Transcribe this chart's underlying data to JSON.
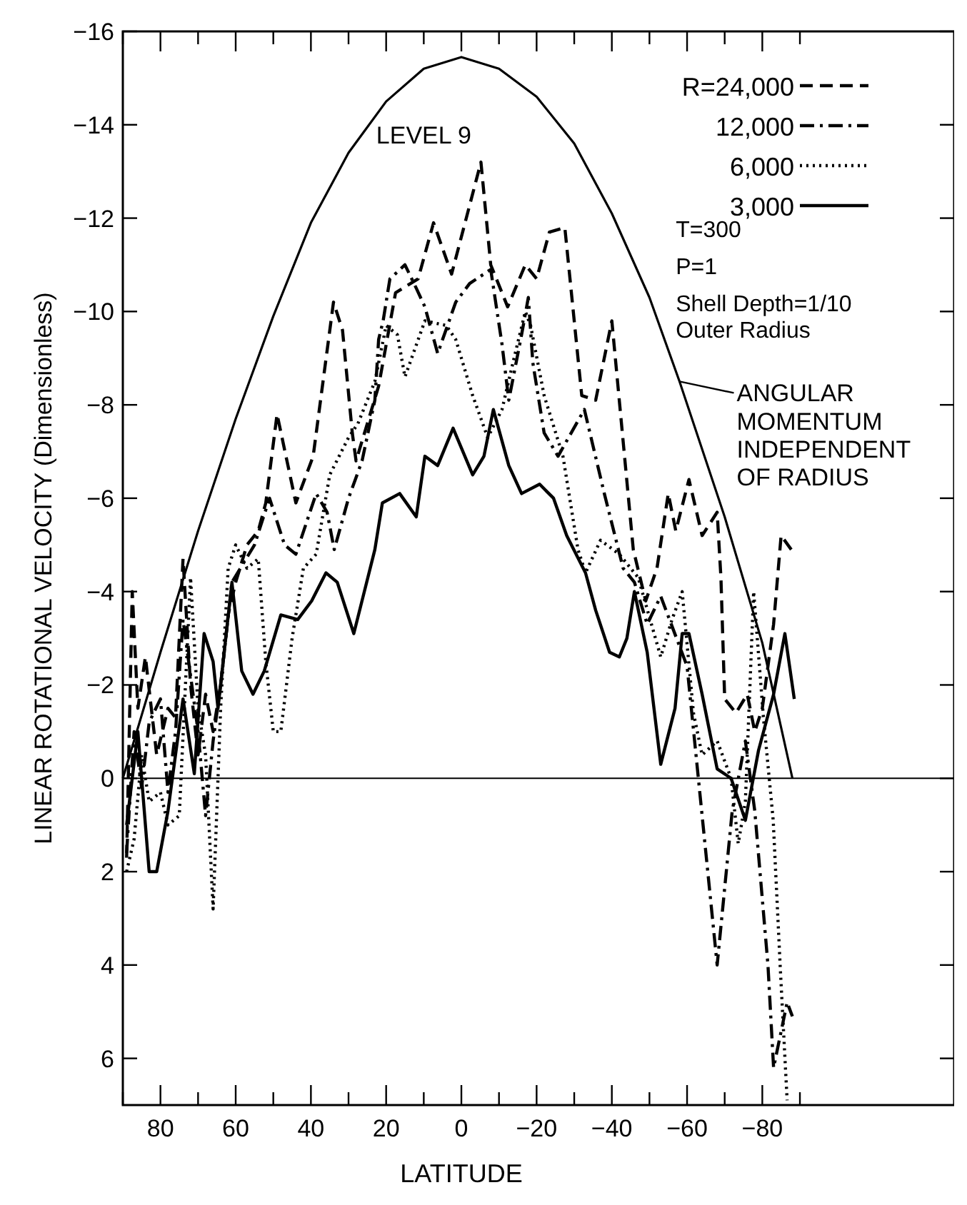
{
  "chart_data": {
    "type": "line",
    "xlabel": "LATITUDE",
    "ylabel": "LINEAR ROTATIONAL VELOCITY (Dimensionless)",
    "xlim": [
      90,
      -131
    ],
    "ylim": [
      7,
      -16
    ],
    "xticks": [
      {
        "value": 90,
        "label": null
      },
      80,
      {
        "value": 70,
        "label": null
      },
      60,
      {
        "value": 50,
        "label": null
      },
      40,
      {
        "value": 30,
        "label": null
      },
      20,
      {
        "value": 10,
        "label": null
      },
      0,
      {
        "value": -10,
        "label": null
      },
      -20,
      {
        "value": -30,
        "label": null
      },
      -40,
      {
        "value": -50,
        "label": null
      },
      -60,
      {
        "value": -70,
        "label": null
      },
      -80,
      {
        "value": -90,
        "label": null
      }
    ],
    "yticks": [
      -16,
      -14,
      -12,
      -10,
      -8,
      -6,
      -4,
      -2,
      0,
      2,
      4,
      6
    ],
    "grid": false,
    "legend": "top right",
    "marker": "none",
    "ref_lines": [
      {
        "axis": "y",
        "value": 0,
        "color": "#000000"
      }
    ],
    "annotations": [
      "LEVEL 9",
      "T=300",
      "P=1",
      "Shell Depth=1/10\nOuter Radius",
      {
        "text": "ANGULAR\nMOMENTUM\nINDEPENDENT\nOF RADIUS",
        "x": -58,
        "y": -8.5
      }
    ],
    "series": [
      {
        "name": "R=24,000",
        "color": "#000000",
        "line_style": "dashed",
        "x": [
          89,
          87.5,
          86,
          84,
          81,
          78,
          76,
          74,
          72,
          70,
          68,
          66,
          64,
          62,
          60,
          57,
          54,
          52,
          49,
          44,
          39.4,
          34,
          31.6,
          29,
          28,
          22,
          17.5,
          11.5,
          7.4,
          2.6,
          -5.2,
          -7.8,
          -12.3,
          -17,
          -20,
          -23.4,
          -27.5,
          -32,
          -35.7,
          -40,
          -45.7,
          -49,
          -52,
          -55,
          -57,
          -60.5,
          -64,
          -68,
          -69,
          -70,
          -73,
          -76,
          -78,
          -80,
          -83,
          -85,
          -87.7
        ],
        "values": [
          1.7,
          -4.0,
          -1.5,
          -2.6,
          -0.5,
          -1.5,
          -1.3,
          -4.7,
          -2.0,
          -0.5,
          -1.8,
          -1.0,
          -2.0,
          -3.5,
          -4.2,
          -5.0,
          -5.3,
          -5.9,
          -7.8,
          -5.9,
          -6.9,
          -10.2,
          -9.6,
          -7.4,
          -6.8,
          -8.4,
          -10.4,
          -10.7,
          -11.9,
          -10.8,
          -13.2,
          -11.0,
          -10.1,
          -11.0,
          -10.7,
          -11.7,
          -11.8,
          -8.2,
          -8.1,
          -9.8,
          -4.9,
          -3.8,
          -4.5,
          -6.1,
          -5.3,
          -6.4,
          -5.2,
          -5.7,
          -4.3,
          -1.7,
          -1.4,
          -1.8,
          -1.0,
          -1.5,
          -3.3,
          -5.2,
          -4.9
        ]
      },
      {
        "name": "12,000",
        "color": "#000000",
        "line_style": "dashdot",
        "x": [
          89,
          87,
          85,
          83,
          80,
          78,
          76,
          74,
          72,
          70,
          68,
          66,
          64,
          61,
          58,
          55,
          51,
          47,
          44,
          38.6,
          35.7,
          33.8,
          30,
          26.4,
          23,
          22,
          20.8,
          19,
          15,
          12,
          9.7,
          6.3,
          1.5,
          -2.2,
          -7.8,
          -10.8,
          -12.6,
          -16,
          -17.8,
          -19,
          -22,
          -25.7,
          -32.7,
          -38,
          -43,
          -46,
          -49.4,
          -53,
          -60,
          -63,
          -68,
          -72,
          -75.5,
          -78,
          -81.5,
          -83,
          -86.6,
          -88
        ],
        "values": [
          1.6,
          -1.0,
          0.2,
          -1.2,
          -1.7,
          0.3,
          -1.0,
          -3.4,
          -2.2,
          -1.0,
          0.8,
          -0.8,
          -2.0,
          -4.2,
          -4.6,
          -5.0,
          -6.0,
          -5.0,
          -4.8,
          -6.1,
          -5.7,
          -4.9,
          -6.0,
          -6.8,
          -8.1,
          -9.4,
          -9.8,
          -10.7,
          -11.0,
          -10.5,
          -10.1,
          -9.1,
          -10.2,
          -10.6,
          -10.9,
          -9.3,
          -8.1,
          -9.5,
          -10.3,
          -8.9,
          -7.4,
          -6.9,
          -7.9,
          -6.1,
          -4.5,
          -4.2,
          -3.3,
          -3.9,
          -2.4,
          0,
          4.0,
          0.7,
          -0.8,
          0.7,
          4.0,
          6.2,
          4.8,
          5.1
        ]
      },
      {
        "name": "6,000",
        "color": "#000000",
        "line_style": "dotted",
        "x": [
          89,
          87,
          85,
          83,
          80,
          78,
          75,
          72,
          70,
          68,
          66,
          64,
          62,
          60,
          57,
          54,
          52,
          50,
          48,
          45,
          42,
          38.6,
          35,
          30,
          27.5,
          23,
          20,
          17,
          15,
          9.7,
          4,
          1.5,
          -3,
          -7,
          -10.8,
          -14,
          -17,
          -18.4,
          -22,
          -27,
          -31,
          -33,
          -37,
          -42,
          -47,
          -53,
          -56,
          -58.7,
          -61.7,
          -64,
          -68,
          -71.7,
          -73.6,
          -75.5,
          -77.7,
          -80.3,
          -82.9,
          -84.8,
          -86.6
        ],
        "values": [
          2.0,
          1.3,
          -0.5,
          0.5,
          0.3,
          1.0,
          0.8,
          -4.3,
          -1.5,
          -0.5,
          2.8,
          -1.5,
          -4.5,
          -5.0,
          -4.5,
          -4.7,
          -2.5,
          -1.0,
          -1.0,
          -3.0,
          -4.5,
          -4.8,
          -6.5,
          -7.3,
          -7.6,
          -8.5,
          -9.7,
          -9.5,
          -8.6,
          -9.8,
          -9.7,
          -9.4,
          -8.2,
          -7.3,
          -7.9,
          -9.0,
          -10.0,
          -9.7,
          -8.2,
          -6.9,
          -4.9,
          -4.4,
          -5.1,
          -4.8,
          -4.3,
          -2.6,
          -3.4,
          -4.0,
          -1.4,
          -0.5,
          -0.8,
          0,
          1.4,
          0.5,
          -4.0,
          -1.3,
          0.9,
          4.1,
          6.9
        ]
      },
      {
        "name": "3,000",
        "color": "#000000",
        "line_style": "solid",
        "x": [
          89,
          86,
          83,
          81,
          78,
          74,
          71,
          68.4,
          66,
          64.7,
          61,
          58.4,
          55.4,
          52.4,
          48,
          43.5,
          39.8,
          36,
          33,
          28.6,
          23,
          21,
          16.4,
          12,
          9.7,
          6.3,
          2.2,
          -3,
          -6,
          -8.5,
          -12.6,
          -16,
          -20.8,
          -24.5,
          -28,
          -33,
          -35.7,
          -39.4,
          -42,
          -44,
          -46,
          -49.4,
          -53,
          -56.8,
          -58.7,
          -60.5,
          -64,
          -68,
          -71.7,
          -75.5,
          -79,
          -83,
          -86,
          -88.5
        ],
        "values": [
          1.0,
          -1.0,
          2.0,
          2.0,
          0.7,
          -1.7,
          -0.1,
          -3.1,
          -2.5,
          -1.5,
          -4.2,
          -2.3,
          -1.8,
          -2.3,
          -3.5,
          -3.4,
          -3.8,
          -4.4,
          -4.2,
          -3.1,
          -4.9,
          -5.9,
          -6.1,
          -5.6,
          -6.9,
          -6.7,
          -7.5,
          -6.5,
          -6.9,
          -7.9,
          -6.7,
          -6.1,
          -6.3,
          -6.0,
          -5.2,
          -4.4,
          -3.6,
          -2.7,
          -2.6,
          -3.0,
          -4.0,
          -2.7,
          -0.3,
          -1.5,
          -3.1,
          -3.1,
          -1.8,
          -0.2,
          0,
          0.9,
          -0.6,
          -1.8,
          -3.1,
          -1.7
        ]
      },
      {
        "color": "#000000",
        "line_style": "solid",
        "x": [
          90,
          80,
          70,
          60,
          50,
          40,
          30,
          20,
          10,
          0,
          -10,
          -20,
          -30,
          -40,
          -50,
          -58,
          -70,
          -80,
          -88
        ],
        "values": [
          0,
          -2.7,
          -5.3,
          -7.7,
          -9.9,
          -11.9,
          -13.4,
          -14.5,
          -15.2,
          -15.45,
          -15.2,
          -14.6,
          -13.6,
          -12.1,
          -10.3,
          -8.5,
          -5.6,
          -2.9,
          0
        ]
      }
    ]
  }
}
